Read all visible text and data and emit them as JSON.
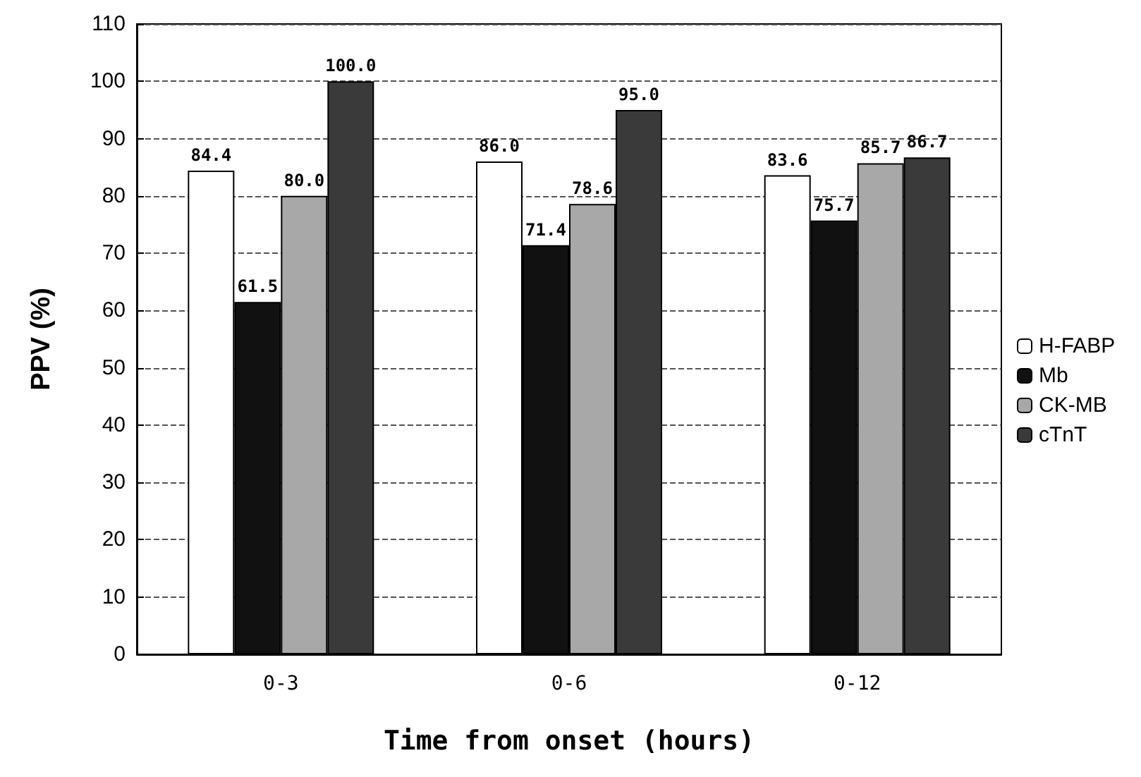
{
  "chart_data": {
    "type": "bar",
    "xlabel": "Time from onset (hours)",
    "ylabel": "PPV (%)",
    "categories": [
      "0-3",
      "0-6",
      "0-12"
    ],
    "series": [
      {
        "name": "H-FABP",
        "color": "#ffffff",
        "values": [
          84.4,
          86.0,
          83.6
        ],
        "value_labels": [
          "84.4",
          "86.0",
          "83.6"
        ]
      },
      {
        "name": "Mb",
        "color": "#111111",
        "values": [
          61.5,
          71.4,
          75.7
        ],
        "value_labels": [
          "61.5",
          "71.4",
          "75.7"
        ]
      },
      {
        "name": "CK-MB",
        "color": "#a8a8a8",
        "values": [
          80.0,
          78.6,
          85.7
        ],
        "value_labels": [
          "80.0",
          "78.6",
          "85.7"
        ]
      },
      {
        "name": "cTnT",
        "color": "#3a3a3a",
        "values": [
          100.0,
          95.0,
          86.7
        ],
        "value_labels": [
          "100.0",
          "95.0",
          "86.7"
        ]
      }
    ],
    "ylim": [
      0,
      110
    ],
    "yticks": [
      0,
      10,
      20,
      30,
      40,
      50,
      60,
      70,
      80,
      90,
      100,
      110
    ],
    "grid": "y",
    "legend": "right"
  }
}
